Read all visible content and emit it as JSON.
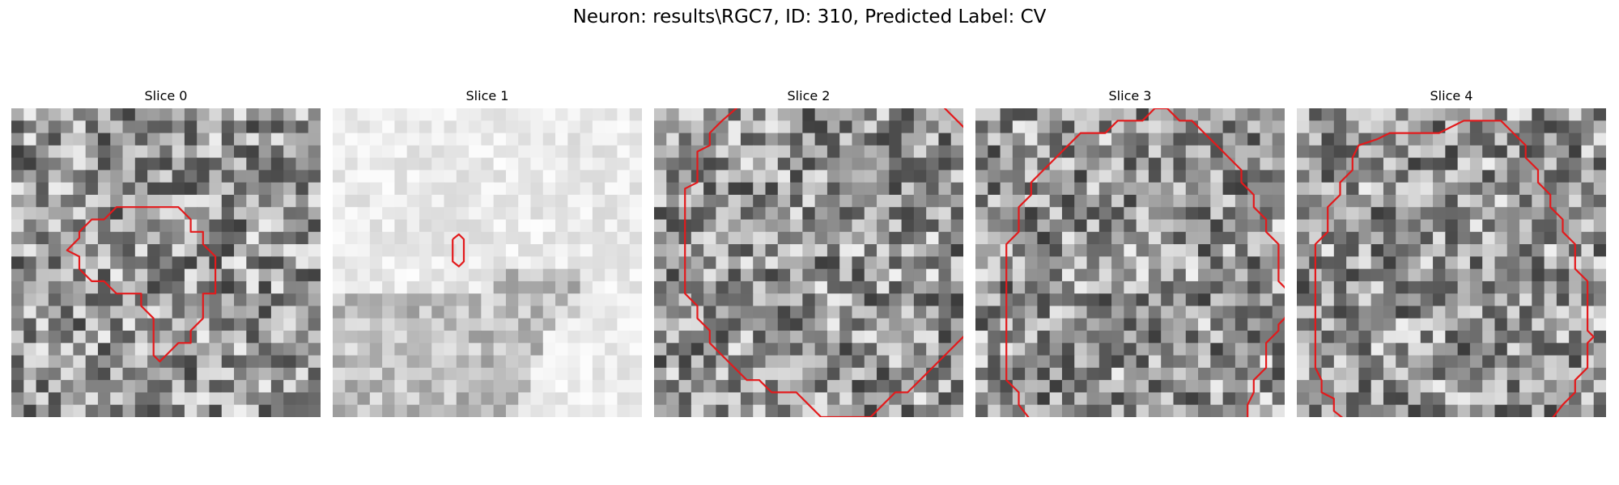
{
  "figure": {
    "title": "Neuron: results\\RGC7, ID: 310, Predicted Label: CV"
  },
  "contour_color": "#e31a1c",
  "panels": [
    {
      "title": "Slice 0",
      "tone": "mixed",
      "contours": [
        [
          [
            10.5,
            8
          ],
          [
            13.5,
            8
          ],
          [
            14.5,
            9
          ],
          [
            14.5,
            10
          ],
          [
            15.5,
            10
          ],
          [
            15.5,
            11
          ],
          [
            16.5,
            12
          ],
          [
            16.5,
            13
          ],
          [
            16.5,
            15
          ],
          [
            15.5,
            15
          ],
          [
            15.5,
            17
          ],
          [
            14.5,
            18
          ],
          [
            14.5,
            19
          ],
          [
            13.5,
            19
          ],
          [
            13,
            19.5
          ],
          [
            12.5,
            20
          ],
          [
            12,
            20.5
          ],
          [
            11.5,
            20
          ],
          [
            11.5,
            17
          ],
          [
            10.5,
            16
          ],
          [
            10.5,
            15
          ],
          [
            9.5,
            15
          ],
          [
            8.5,
            15
          ],
          [
            8,
            14.5
          ],
          [
            7.5,
            14
          ],
          [
            6.5,
            14
          ],
          [
            6,
            13.5
          ],
          [
            5.5,
            13
          ],
          [
            5.5,
            12
          ],
          [
            4.5,
            11.5
          ],
          [
            5.5,
            10.5
          ],
          [
            5.5,
            10
          ],
          [
            6.5,
            9
          ],
          [
            7.5,
            9
          ],
          [
            8.5,
            8
          ],
          [
            9.5,
            8
          ],
          [
            10.5,
            8
          ]
        ]
      ]
    },
    {
      "title": "Slice 1",
      "tone": "light",
      "contours": [
        [
          [
            9.7,
            10.6
          ],
          [
            10.2,
            10.2
          ],
          [
            10.6,
            10.6
          ],
          [
            10.6,
            12.4
          ],
          [
            10.2,
            12.8
          ],
          [
            9.7,
            12.4
          ],
          [
            9.7,
            10.6
          ]
        ]
      ]
    },
    {
      "title": "Slice 2",
      "tone": "mixed",
      "contours": [
        [
          [
            7,
            -0.3
          ],
          [
            5.5,
            1
          ],
          [
            5,
            1.5
          ],
          [
            4.5,
            2
          ],
          [
            4.5,
            3
          ],
          [
            3.5,
            3.5
          ],
          [
            3.5,
            5
          ],
          [
            3.5,
            6
          ],
          [
            2.5,
            6.5
          ],
          [
            2.5,
            8
          ],
          [
            2.5,
            10
          ],
          [
            2.5,
            12
          ],
          [
            2.5,
            14
          ],
          [
            2.5,
            15
          ],
          [
            3.5,
            16
          ],
          [
            3.5,
            17
          ],
          [
            4.5,
            18
          ],
          [
            4.5,
            19
          ],
          [
            5.5,
            20
          ],
          [
            6.5,
            21
          ],
          [
            7.5,
            22
          ],
          [
            8.5,
            22
          ],
          [
            9.5,
            23
          ],
          [
            10.5,
            23
          ],
          [
            11.5,
            23
          ],
          [
            12.5,
            24
          ],
          [
            13.5,
            25
          ],
          [
            14.5,
            25
          ],
          [
            15.5,
            25
          ],
          [
            16.5,
            25
          ],
          [
            17.5,
            25
          ],
          [
            18.5,
            24
          ],
          [
            19.5,
            23
          ],
          [
            20.5,
            23
          ],
          [
            21.5,
            22
          ],
          [
            22.5,
            21
          ],
          [
            23.5,
            20
          ],
          [
            24.5,
            19
          ],
          [
            25.5,
            18
          ],
          [
            25.5,
            17
          ],
          [
            26.5,
            16
          ],
          [
            26.5,
            14
          ],
          [
            25.5,
            13
          ],
          [
            25.5,
            12
          ],
          [
            25.5,
            10
          ],
          [
            25.5,
            8
          ],
          [
            26,
            7.5
          ],
          [
            26.5,
            7
          ],
          [
            25.5,
            6.5
          ],
          [
            26,
            6
          ],
          [
            26.5,
            5.5
          ],
          [
            25.5,
            5
          ],
          [
            25.5,
            3
          ],
          [
            25.5,
            2
          ],
          [
            24.5,
            1
          ],
          [
            23.5,
            0
          ],
          [
            23.5,
            -0.3
          ]
        ]
      ]
    },
    {
      "title": "Slice 3",
      "tone": "mixed",
      "contours": [
        [
          [
            4.5,
            25.3
          ],
          [
            3.5,
            24
          ],
          [
            3.5,
            23
          ],
          [
            2.5,
            22
          ],
          [
            2.5,
            20
          ],
          [
            2.5,
            16
          ],
          [
            2.5,
            12
          ],
          [
            2.5,
            11
          ],
          [
            3.5,
            10
          ],
          [
            3.5,
            8
          ],
          [
            4.5,
            7
          ],
          [
            4.5,
            6
          ],
          [
            5.5,
            5
          ],
          [
            6.5,
            4
          ],
          [
            7.5,
            3
          ],
          [
            8.5,
            2
          ],
          [
            9.5,
            2
          ],
          [
            10.5,
            2
          ],
          [
            11.5,
            1
          ],
          [
            12.5,
            1
          ],
          [
            13.5,
            1
          ],
          [
            14.5,
            0
          ],
          [
            15.5,
            0
          ],
          [
            16.5,
            1
          ],
          [
            17.5,
            1
          ],
          [
            18.5,
            2
          ],
          [
            19.5,
            3
          ],
          [
            20.5,
            4
          ],
          [
            21.5,
            5
          ],
          [
            21.5,
            6
          ],
          [
            22.5,
            7
          ],
          [
            22.5,
            8
          ],
          [
            23.5,
            9
          ],
          [
            23.5,
            10
          ],
          [
            24.5,
            11
          ],
          [
            24.5,
            13
          ],
          [
            24.5,
            14
          ],
          [
            25.5,
            15
          ],
          [
            25.5,
            16
          ],
          [
            25,
            17
          ],
          [
            24.5,
            17.5
          ],
          [
            24.5,
            18
          ],
          [
            23.5,
            19
          ],
          [
            23.5,
            20
          ],
          [
            23.5,
            21
          ],
          [
            22.5,
            22
          ],
          [
            22.5,
            23
          ],
          [
            22,
            24
          ],
          [
            22,
            25.3
          ]
        ]
      ]
    },
    {
      "title": "Slice 4",
      "tone": "mixed",
      "contours": [
        [
          [
            4,
            25.3
          ],
          [
            3,
            24.5
          ],
          [
            3,
            23.5
          ],
          [
            2,
            23
          ],
          [
            2,
            22
          ],
          [
            1.5,
            21
          ],
          [
            1.5,
            20
          ],
          [
            1.5,
            16
          ],
          [
            1.5,
            12
          ],
          [
            1.5,
            11
          ],
          [
            2.5,
            10
          ],
          [
            2.5,
            8
          ],
          [
            3.5,
            7
          ],
          [
            3.5,
            6
          ],
          [
            4.5,
            5
          ],
          [
            4.5,
            4
          ],
          [
            5,
            3
          ],
          [
            6.5,
            2.5
          ],
          [
            7.5,
            2
          ],
          [
            8.5,
            2
          ],
          [
            10.5,
            2
          ],
          [
            11.5,
            2
          ],
          [
            12.5,
            1.5
          ],
          [
            13.5,
            1
          ],
          [
            15.5,
            1
          ],
          [
            16.5,
            1
          ],
          [
            17.5,
            2
          ],
          [
            18.5,
            3
          ],
          [
            18.5,
            4
          ],
          [
            19.5,
            5
          ],
          [
            19.5,
            6
          ],
          [
            20.5,
            7
          ],
          [
            20.5,
            8
          ],
          [
            21.5,
            9
          ],
          [
            21.5,
            10
          ],
          [
            22.5,
            11
          ],
          [
            22.5,
            12
          ],
          [
            22.5,
            13
          ],
          [
            23.5,
            14
          ],
          [
            23.5,
            16
          ],
          [
            23.5,
            18
          ],
          [
            24,
            18.5
          ],
          [
            23.5,
            19
          ],
          [
            23.5,
            21
          ],
          [
            22.5,
            22
          ],
          [
            22.5,
            23
          ],
          [
            21.5,
            24
          ],
          [
            20.5,
            25.3
          ]
        ]
      ]
    }
  ]
}
